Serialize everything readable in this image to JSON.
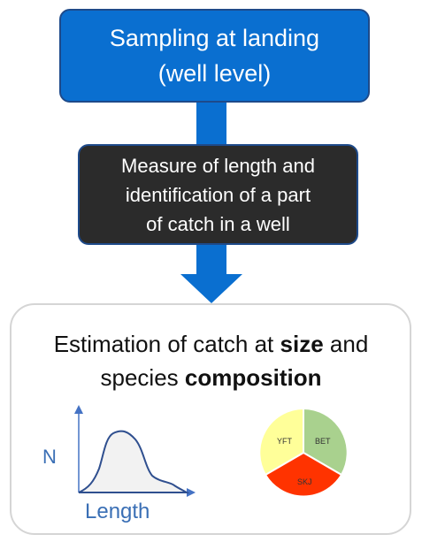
{
  "top_box": {
    "line1": "Sampling at landing",
    "line2": "(well level)"
  },
  "mid_box": {
    "line1": "Measure of length and",
    "line2": "identification of a part",
    "line3": "of catch in a well"
  },
  "estimation": {
    "line1_prefix": "Estimation of catch at ",
    "line1_bold": "size",
    "line1_suffix": " and",
    "line2_prefix": "species ",
    "line2_bold": "composition"
  },
  "distribution_plot": {
    "y_label": "N",
    "x_label": "Length"
  },
  "species_pie": {
    "slices": [
      {
        "label": "BET",
        "color": "#a9d18e"
      },
      {
        "label": "SKJ",
        "color": "#ff3300"
      },
      {
        "label": "YFT",
        "color": "#ffff99"
      }
    ]
  },
  "colors": {
    "primary_blue": "#0a6fd0",
    "dark_box": "#2b2b2b",
    "arrow_blue": "#0a6fd0"
  }
}
